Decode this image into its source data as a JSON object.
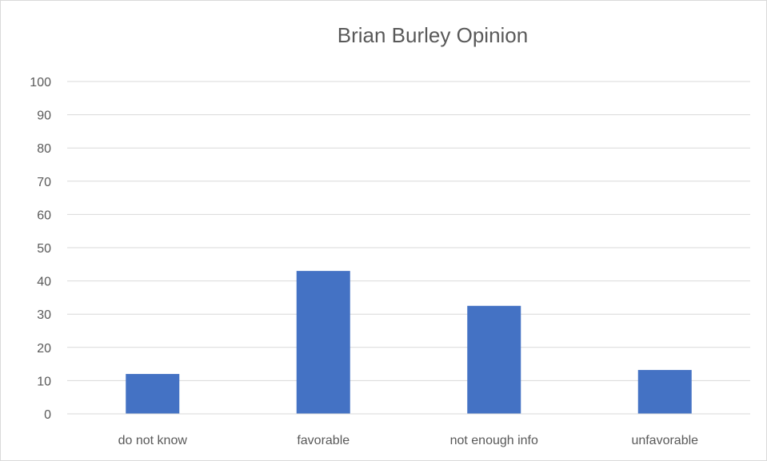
{
  "chart_data": {
    "type": "bar",
    "title": "Brian Burley Opinion",
    "categories": [
      "do not know",
      "favorable",
      "not enough info",
      "unfavorable"
    ],
    "series": [
      {
        "values": [
          12,
          43,
          32.5,
          13.2
        ],
        "color": "#4472c4"
      }
    ],
    "xlabel": "",
    "ylabel": "",
    "ylim": [
      0,
      100
    ],
    "yticks": [
      "0",
      "10",
      "20",
      "30",
      "40",
      "50",
      "60",
      "70",
      "80",
      "90",
      "100"
    ],
    "grid": true,
    "gridColor": "#d9d9d9",
    "legend": "none"
  }
}
